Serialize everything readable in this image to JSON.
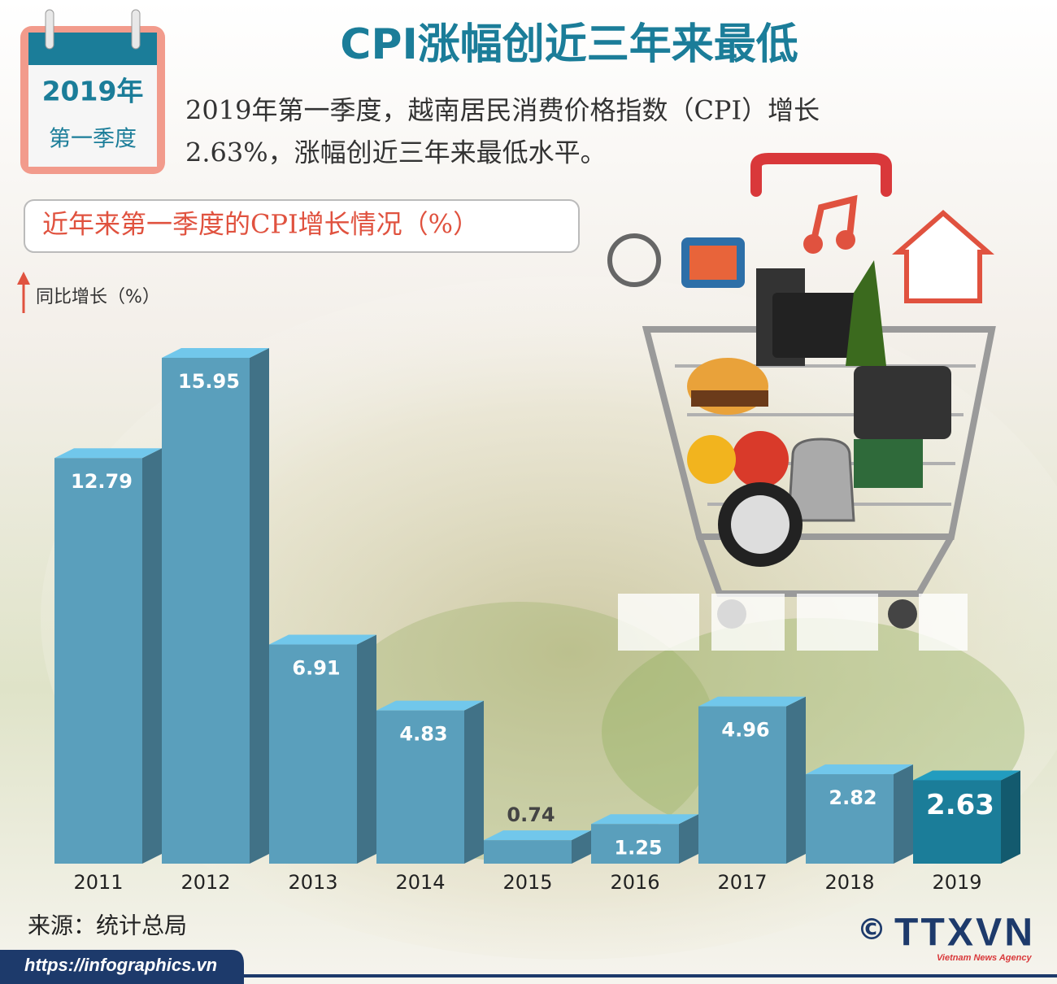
{
  "chart_data": {
    "type": "bar",
    "title": "CPI涨幅创近三年来最低",
    "calendar": {
      "year": "2019年",
      "quarter": "第一季度"
    },
    "description": [
      "2019年第一季度，越南居民消费价格指数（CPI）增长",
      "2.63%，涨幅创近三年来最低水平。"
    ],
    "subtitle": "近年来第一季度的CPI增长情况（%）",
    "y_label": "同比增长（%）",
    "categories": [
      "2011",
      "2012",
      "2013",
      "2014",
      "2015",
      "2016",
      "2017",
      "2018",
      "2019"
    ],
    "values": [
      12.79,
      15.95,
      6.91,
      4.83,
      0.74,
      1.25,
      4.96,
      2.82,
      2.63
    ],
    "colors": [
      "#5a9fbc",
      "#5a9fbc",
      "#5a9fbc",
      "#5a9fbc",
      "#5a9fbc",
      "#5a9fbc",
      "#5a9fbc",
      "#5a9fbc",
      "#1b7d99"
    ],
    "source": "来源：统计总局",
    "url": "https://infographics.vn",
    "logo": {
      "symbol": "©",
      "name": "TTXVN",
      "tagline": "Vietnam News Agency"
    }
  }
}
